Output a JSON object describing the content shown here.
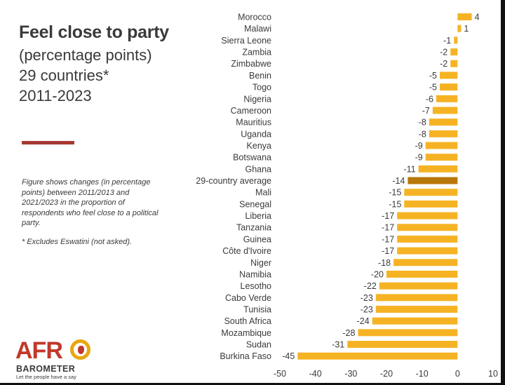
{
  "title": "Feel close to party",
  "subtitle_lines": [
    "(percentage points)",
    "29 countries*",
    "2011-2023"
  ],
  "note": "Figure shows changes (in percentage points) between 2011/2013 and 2021/2023 in the proportion of respondents who feel close to a political party.",
  "footnote": "* Excludes Eswatini (not asked).",
  "logo": {
    "brand": "AFRO",
    "brand_sub": "BAROMETER",
    "tagline": "Let the people have a say"
  },
  "colors": {
    "bar": "#f5b324",
    "highlight": "#b7770a",
    "title": "#3a3a3a",
    "rule": "#a53a32"
  },
  "chart_data": {
    "type": "bar",
    "orientation": "horizontal",
    "categories": [
      "Morocco",
      "Malawi",
      "Sierra Leone",
      "Zambia",
      "Zimbabwe",
      "Benin",
      "Togo",
      "Nigeria",
      "Cameroon",
      "Mauritius",
      "Uganda",
      "Kenya",
      "Botswana",
      "Ghana",
      "29-country average",
      "Mali",
      "Senegal",
      "Liberia",
      "Tanzania",
      "Guinea",
      "Côte d'Ivoire",
      "Niger",
      "Namibia",
      "Lesotho",
      "Cabo Verde",
      "Tunisia",
      "South Africa",
      "Mozambique",
      "Sudan",
      "Burkina Faso"
    ],
    "values": [
      4,
      1,
      -1,
      -2,
      -2,
      -5,
      -5,
      -6,
      -7,
      -8,
      -8,
      -9,
      -9,
      -11,
      -14,
      -15,
      -15,
      -17,
      -17,
      -17,
      -17,
      -18,
      -20,
      -22,
      -23,
      -23,
      -24,
      -28,
      -31,
      -45
    ],
    "highlight_category": "29-country average",
    "xlim": [
      -50,
      10
    ],
    "xticks": [
      -50,
      -40,
      -30,
      -20,
      -10,
      0,
      10
    ],
    "grid": false,
    "legend": "none"
  }
}
